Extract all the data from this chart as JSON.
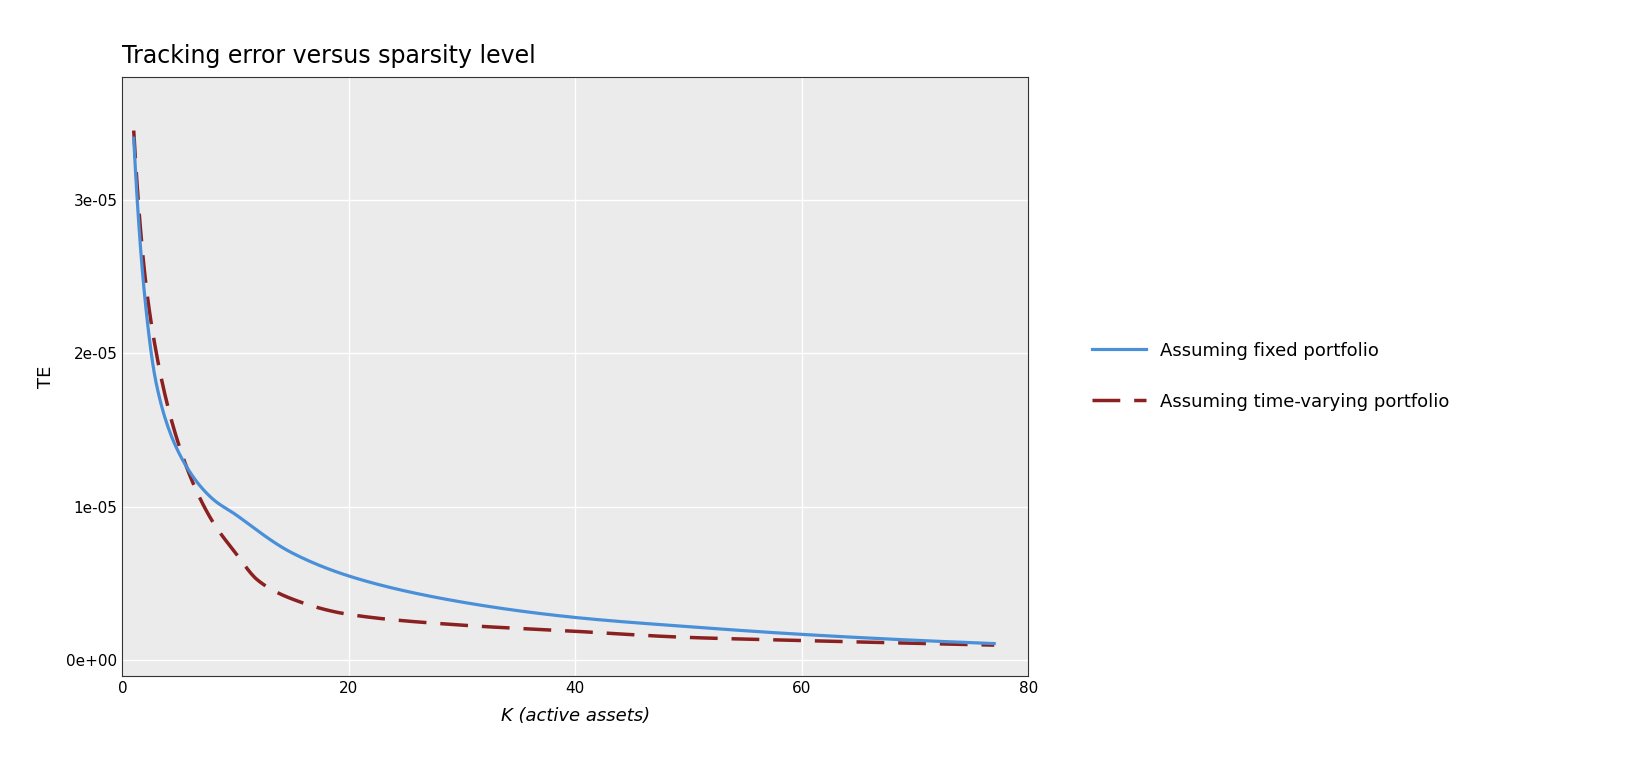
{
  "title": "Tracking error versus sparsity level",
  "xlabel": "K (active assets)",
  "ylabel": "TE",
  "xlim": [
    0,
    80
  ],
  "ylim": [
    -1e-06,
    3.8e-05
  ],
  "x_ticks": [
    0,
    20,
    40,
    60,
    80
  ],
  "y_ticks": [
    0,
    1e-05,
    2e-05,
    3e-05
  ],
  "y_tick_labels": [
    "0e+00",
    "1e-05",
    "2e-05",
    "3e-05"
  ],
  "fixed_color": "#4a90d9",
  "varying_color": "#8B2020",
  "fixed_label": "Assuming fixed portfolio",
  "varying_label": "Assuming time-varying portfolio",
  "fixed_linewidth": 2.3,
  "varying_linewidth": 2.5,
  "background_color": "#ffffff",
  "panel_color": "#ebebeb",
  "grid_color": "#ffffff",
  "title_fontsize": 17,
  "axis_label_fontsize": 13,
  "tick_fontsize": 11,
  "legend_fontsize": 13
}
